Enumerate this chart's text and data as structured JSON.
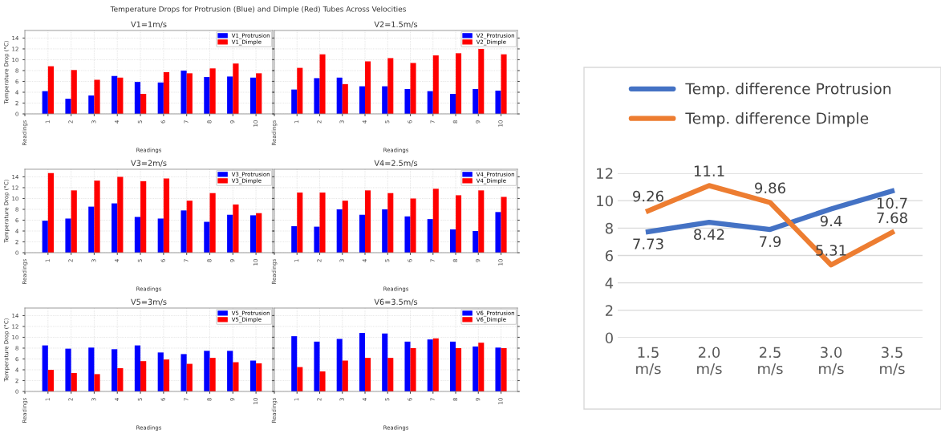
{
  "chart_data": [
    {
      "type": "bar",
      "title": "V1=1m/s",
      "xlabel": "Readings",
      "ylabel": "Temperature Drop (°C)",
      "annotations": [
        "Temperature Drops for Protrusion (Blue) and Dimple (Red) Tubes Across Velocities"
      ],
      "categories": [
        "Readings",
        "1",
        "2",
        "3",
        "4",
        "5",
        "6",
        "7",
        "8",
        "9",
        "10"
      ],
      "series": [
        {
          "name": "V1_Protrusion",
          "color": "#0000ff",
          "values": [
            null,
            4.2,
            2.8,
            3.4,
            7.0,
            5.9,
            5.8,
            8.0,
            6.8,
            6.9,
            6.7
          ]
        },
        {
          "name": "V1_Dimple",
          "color": "#ff0000",
          "values": [
            null,
            8.8,
            8.1,
            6.3,
            6.7,
            3.7,
            7.7,
            7.5,
            8.4,
            9.3,
            7.5
          ]
        }
      ],
      "ylim": [
        0,
        15.4
      ],
      "yticks": [
        0,
        2,
        4,
        6,
        8,
        10,
        12,
        14
      ],
      "grid": true,
      "legend": "top right"
    },
    {
      "type": "bar",
      "title": "V2=1.5m/s",
      "xlabel": "Readings",
      "categories": [
        "Readings",
        "1",
        "2",
        "3",
        "4",
        "5",
        "6",
        "7",
        "8",
        "9",
        "10"
      ],
      "series": [
        {
          "name": "V2_Protrusion",
          "color": "#0000ff",
          "values": [
            null,
            4.5,
            6.6,
            6.7,
            5.1,
            5.1,
            4.6,
            4.2,
            3.7,
            4.6,
            4.3
          ]
        },
        {
          "name": "V2_Dimple",
          "color": "#ff0000",
          "values": [
            null,
            8.5,
            11.0,
            5.5,
            9.7,
            10.3,
            9.4,
            10.8,
            11.2,
            12.0,
            11.0
          ]
        }
      ],
      "ylim": [
        0,
        15.4
      ],
      "grid": true,
      "legend": "top right",
      "tick_labels": "x"
    },
    {
      "type": "bar",
      "title": "V3=2m/s",
      "xlabel": "Readings",
      "ylabel": "Temperature Drop (°C)",
      "categories": [
        "Readings",
        "1",
        "2",
        "3",
        "4",
        "5",
        "6",
        "7",
        "8",
        "9",
        "10"
      ],
      "series": [
        {
          "name": "V3_Protrusion",
          "color": "#0000ff",
          "values": [
            null,
            5.9,
            6.3,
            8.5,
            9.1,
            6.6,
            6.3,
            7.8,
            5.7,
            7.0,
            6.9
          ]
        },
        {
          "name": "V3_Dimple",
          "color": "#ff0000",
          "values": [
            null,
            14.7,
            11.5,
            13.3,
            14.0,
            13.2,
            13.7,
            9.6,
            11.0,
            8.9,
            7.3
          ]
        }
      ],
      "ylim": [
        0,
        15.4
      ],
      "yticks": [
        0,
        2,
        4,
        6,
        8,
        10,
        12,
        14
      ],
      "grid": true,
      "legend": "top right"
    },
    {
      "type": "bar",
      "title": "V4=2.5m/s",
      "xlabel": "Readings",
      "categories": [
        "Readings",
        "1",
        "2",
        "3",
        "4",
        "5",
        "6",
        "7",
        "8",
        "9",
        "10"
      ],
      "series": [
        {
          "name": "V4_Protrusion",
          "color": "#0000ff",
          "values": [
            null,
            4.9,
            4.8,
            8.0,
            7.0,
            8.0,
            6.7,
            6.2,
            4.3,
            4.0,
            7.5
          ]
        },
        {
          "name": "V4_Dimple",
          "color": "#ff0000",
          "values": [
            null,
            11.1,
            11.1,
            9.6,
            11.5,
            11.0,
            10.0,
            11.8,
            10.6,
            11.5,
            10.3
          ]
        }
      ],
      "ylim": [
        0,
        15.4
      ],
      "grid": true,
      "legend": "top right",
      "tick_labels": "x"
    },
    {
      "type": "bar",
      "title": "V5=3m/s",
      "xlabel": "Readings",
      "ylabel": "Temperature Drop (°C)",
      "categories": [
        "Readings",
        "1",
        "2",
        "3",
        "4",
        "5",
        "6",
        "7",
        "8",
        "9",
        "10"
      ],
      "series": [
        {
          "name": "V5_Protrusion",
          "color": "#0000ff",
          "values": [
            null,
            8.5,
            7.9,
            8.1,
            7.8,
            8.5,
            7.2,
            6.9,
            7.5,
            7.5,
            5.7
          ]
        },
        {
          "name": "V5_Dimple",
          "color": "#ff0000",
          "values": [
            null,
            4.0,
            3.4,
            3.2,
            4.3,
            5.6,
            5.9,
            5.1,
            6.2,
            5.4,
            5.2
          ]
        }
      ],
      "ylim": [
        0,
        15.4
      ],
      "yticks": [
        0,
        2,
        4,
        6,
        8,
        10,
        12,
        14
      ],
      "grid": true,
      "legend": "top right"
    },
    {
      "type": "bar",
      "title": "V6=3.5m/s",
      "xlabel": "Readings",
      "categories": [
        "Readings",
        "1",
        "2",
        "3",
        "4",
        "5",
        "6",
        "7",
        "8",
        "9",
        "10"
      ],
      "series": [
        {
          "name": "V6_Protrusion",
          "color": "#0000ff",
          "values": [
            null,
            10.2,
            9.2,
            9.7,
            10.8,
            10.7,
            9.2,
            9.6,
            9.2,
            8.3,
            8.1
          ]
        },
        {
          "name": "V6_Dimple",
          "color": "#ff0000",
          "values": [
            null,
            4.5,
            3.7,
            5.7,
            6.2,
            6.2,
            8.0,
            9.8,
            8.0,
            9.0,
            8.0
          ]
        }
      ],
      "ylim": [
        0,
        15.4
      ],
      "grid": true,
      "legend": "top right",
      "tick_labels": "x"
    },
    {
      "type": "line",
      "categories": [
        "1.5\nm/s",
        "2.0\nm/s",
        "2.5\nm/s",
        "3.0\nm/s",
        "3.5\nm/s"
      ],
      "series": [
        {
          "name": "Temp. difference Protrusion",
          "color": "#4472c4",
          "values": [
            7.73,
            8.42,
            7.9,
            9.4,
            10.7
          ]
        },
        {
          "name": "Temp. difference Dimple",
          "color": "#ed7d31",
          "values": [
            9.26,
            11.1,
            9.86,
            5.31,
            7.68
          ]
        }
      ],
      "ylim": [
        0,
        12
      ],
      "yticks": [
        0,
        2,
        4,
        6,
        8,
        10,
        12
      ],
      "grid": "y",
      "legend": "top",
      "data_labels": true
    }
  ]
}
